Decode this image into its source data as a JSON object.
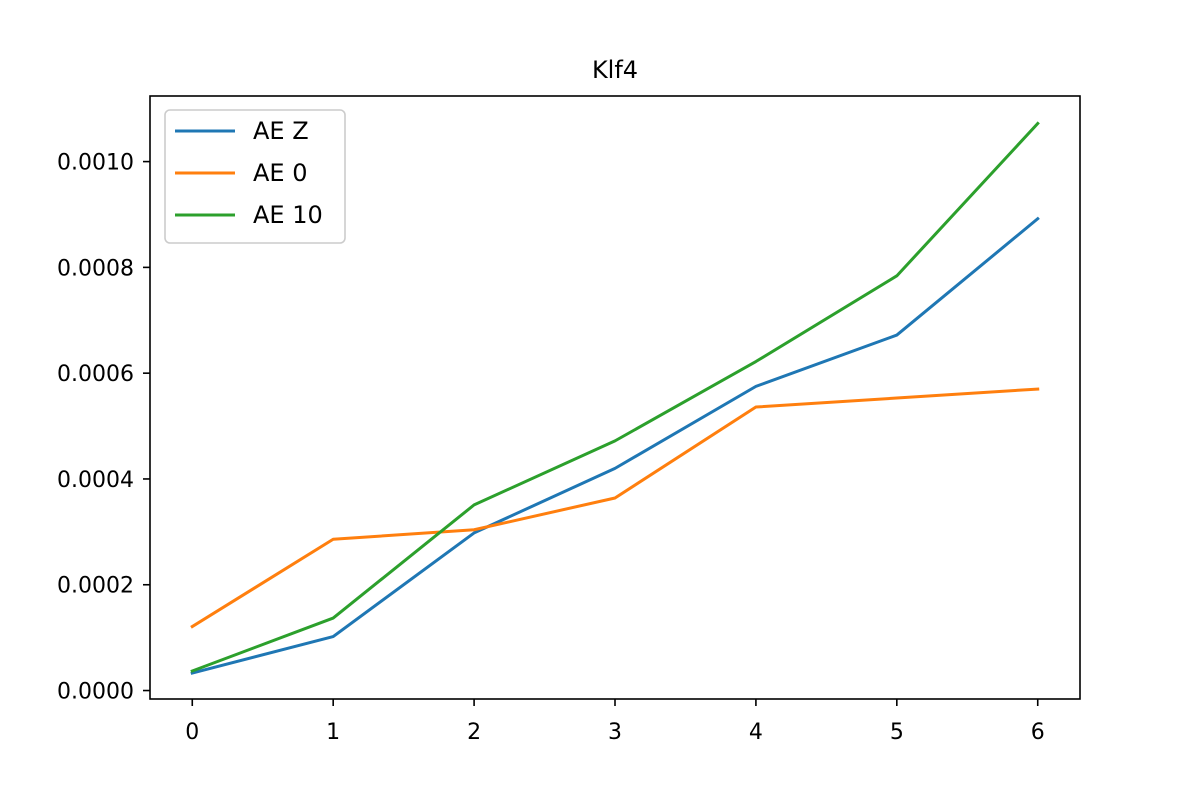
{
  "chart_data": {
    "type": "line",
    "title": "Klf4",
    "xlabel": "",
    "ylabel": "",
    "x": [
      0,
      1,
      2,
      3,
      4,
      5,
      6
    ],
    "x_ticks": [
      "0",
      "1",
      "2",
      "3",
      "4",
      "5",
      "6"
    ],
    "xlim": [
      -0.3,
      6.3
    ],
    "y_ticks": [
      {
        "value": 0.0,
        "label": "0.0000"
      },
      {
        "value": 0.0002,
        "label": "0.0002"
      },
      {
        "value": 0.0004,
        "label": "0.0004"
      },
      {
        "value": 0.0006,
        "label": "0.0006"
      },
      {
        "value": 0.0008,
        "label": "0.0008"
      },
      {
        "value": 0.001,
        "label": "0.0010"
      }
    ],
    "ylim": [
      -1.6e-05,
      0.001124
    ],
    "grid": false,
    "legend_position": "upper left",
    "series": [
      {
        "name": "AE Z",
        "color": "#1f77b4",
        "values": [
          3.3e-05,
          0.000102,
          0.000298,
          0.00042,
          0.000575,
          0.000672,
          0.000892
        ]
      },
      {
        "name": "AE 0",
        "color": "#ff7f0e",
        "values": [
          0.000121,
          0.000286,
          0.000304,
          0.000364,
          0.000536,
          0.000553,
          0.00057
        ]
      },
      {
        "name": "AE 10",
        "color": "#2ca02c",
        "values": [
          3.7e-05,
          0.000137,
          0.000351,
          0.000472,
          0.000622,
          0.000784,
          0.001072
        ]
      }
    ]
  }
}
